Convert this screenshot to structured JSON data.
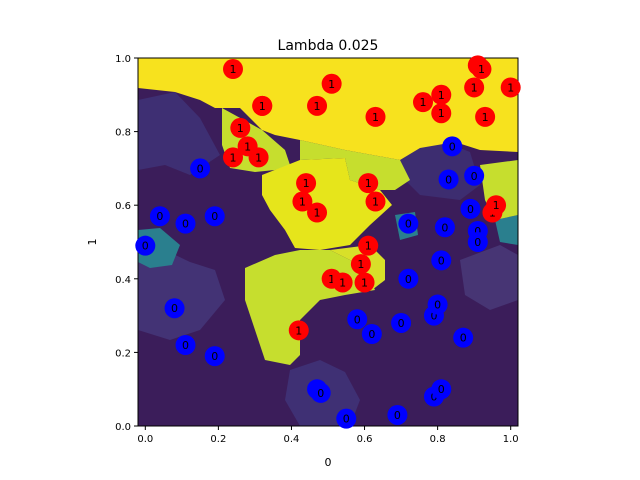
{
  "chart_data": {
    "type": "scatter",
    "title": "Lambda 0.025",
    "xlabel": "0",
    "ylabel": "1",
    "xlim": [
      -0.02,
      1.02
    ],
    "ylim": [
      0.0,
      1.0
    ],
    "xticks": [
      "0.0",
      "0.2",
      "0.4",
      "0.6",
      "0.8",
      "1.0"
    ],
    "yticks": [
      "0.0",
      "0.2",
      "0.4",
      "0.6",
      "0.8",
      "1.0"
    ],
    "xtick_values": [
      0.0,
      0.2,
      0.4,
      0.6,
      0.8,
      1.0
    ],
    "ytick_values": [
      0.0,
      0.2,
      0.4,
      0.6,
      0.8,
      1.0
    ],
    "grid": false,
    "background": "decision-surface heatmap (viridis)",
    "class_colors": {
      "0": "#0000ff",
      "1": "#ff0000"
    },
    "surface_colors": {
      "class0_dark": "#3b1d5a",
      "class0_mid": "#3a2b6e",
      "class0_teal": "#2a7f8e",
      "class1_yellow": "#f7e21e",
      "class1_lime": "#c6de2e"
    },
    "series": [
      {
        "label": "0",
        "points": [
          [
            0.0,
            0.49
          ],
          [
            0.04,
            0.57
          ],
          [
            0.11,
            0.55
          ],
          [
            0.15,
            0.7
          ],
          [
            0.19,
            0.57
          ],
          [
            0.08,
            0.32
          ],
          [
            0.11,
            0.22
          ],
          [
            0.19,
            0.19
          ],
          [
            0.47,
            0.1
          ],
          [
            0.48,
            0.09
          ],
          [
            0.55,
            0.02
          ],
          [
            0.58,
            0.29
          ],
          [
            0.62,
            0.25
          ],
          [
            0.69,
            0.03
          ],
          [
            0.7,
            0.28
          ],
          [
            0.72,
            0.55
          ],
          [
            0.72,
            0.4
          ],
          [
            0.79,
            0.3
          ],
          [
            0.79,
            0.08
          ],
          [
            0.8,
            0.33
          ],
          [
            0.81,
            0.1
          ],
          [
            0.81,
            0.45
          ],
          [
            0.82,
            0.54
          ],
          [
            0.83,
            0.67
          ],
          [
            0.84,
            0.76
          ],
          [
            0.87,
            0.24
          ],
          [
            0.89,
            0.59
          ],
          [
            0.9,
            0.68
          ],
          [
            0.91,
            0.53
          ],
          [
            0.91,
            0.5
          ]
        ]
      },
      {
        "label": "1",
        "points": [
          [
            0.24,
            0.97
          ],
          [
            0.32,
            0.87
          ],
          [
            0.32,
            0.87
          ],
          [
            0.26,
            0.81
          ],
          [
            0.28,
            0.76
          ],
          [
            0.24,
            0.73
          ],
          [
            0.31,
            0.73
          ],
          [
            0.42,
            0.26
          ],
          [
            0.44,
            0.66
          ],
          [
            0.43,
            0.61
          ],
          [
            0.47,
            0.58
          ],
          [
            0.47,
            0.87
          ],
          [
            0.51,
            0.93
          ],
          [
            0.51,
            0.4
          ],
          [
            0.54,
            0.39
          ],
          [
            0.59,
            0.44
          ],
          [
            0.6,
            0.39
          ],
          [
            0.61,
            0.49
          ],
          [
            0.61,
            0.66
          ],
          [
            0.63,
            0.61
          ],
          [
            0.63,
            0.84
          ],
          [
            0.76,
            0.88
          ],
          [
            0.81,
            0.85
          ],
          [
            0.81,
            0.9
          ],
          [
            0.9,
            0.92
          ],
          [
            0.91,
            0.98
          ],
          [
            0.92,
            0.97
          ],
          [
            0.93,
            0.84
          ],
          [
            0.95,
            0.58
          ],
          [
            0.96,
            0.6
          ],
          [
            1.0,
            0.92
          ]
        ]
      }
    ]
  }
}
